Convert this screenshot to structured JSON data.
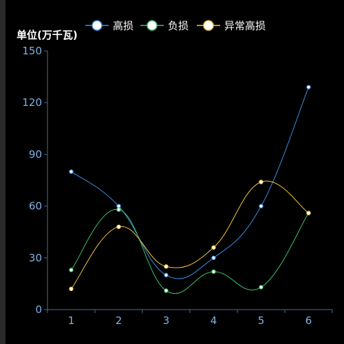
{
  "chart_data": {
    "type": "line",
    "title": "",
    "xlabel": "",
    "ylabel": "单位(万千瓦)",
    "categories": [
      "1",
      "2",
      "3",
      "4",
      "5",
      "6"
    ],
    "ylim": [
      0,
      150
    ],
    "yticks": [
      0,
      30,
      60,
      90,
      120,
      150
    ],
    "grid": false,
    "legend_position": "top-center",
    "smooth": true,
    "series": [
      {
        "name": "高损",
        "color": "#3a8ee6",
        "values": [
          80,
          60,
          20,
          30,
          60,
          129
        ]
      },
      {
        "name": "负损",
        "color": "#3fbf6b",
        "values": [
          23,
          58,
          11,
          22,
          13,
          56
        ]
      },
      {
        "name": "异常高损",
        "color": "#f2c641",
        "values": [
          12,
          48,
          25,
          36,
          74,
          56
        ]
      }
    ]
  },
  "colors": {
    "background": "#000000",
    "axis": "#4f6b8f",
    "tick_label": "#7fb3e6",
    "text": "#ffffff"
  }
}
